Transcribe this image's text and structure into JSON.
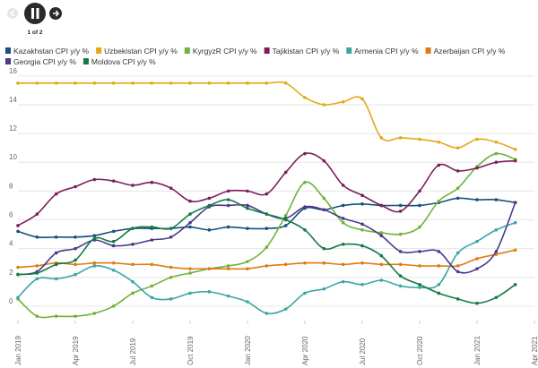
{
  "controls": {
    "pager": "1 of 2"
  },
  "chart_data": {
    "type": "line",
    "x": [
      "2019-01",
      "2019-02",
      "2019-03",
      "2019-04",
      "2019-05",
      "2019-06",
      "2019-07",
      "2019-08",
      "2019-09",
      "2019-10",
      "2019-11",
      "2019-12",
      "2020-01",
      "2020-02",
      "2020-03",
      "2020-04",
      "2020-05",
      "2020-06",
      "2020-07",
      "2020-08",
      "2020-09",
      "2020-10",
      "2020-11",
      "2020-12",
      "2021-01",
      "2021-02",
      "2021-03"
    ],
    "xlim": [
      "2019-01",
      "2021-04"
    ],
    "xticks": [
      {
        "value": "2019-01",
        "label": "Jan 2019"
      },
      {
        "value": "2019-04",
        "label": "Apr 2019"
      },
      {
        "value": "2019-07",
        "label": "Jul 2019"
      },
      {
        "value": "2019-10",
        "label": "Oct 2019"
      },
      {
        "value": "2020-01",
        "label": "Jan 2020"
      },
      {
        "value": "2020-04",
        "label": "Apr 2020"
      },
      {
        "value": "2020-07",
        "label": "Jul 2020"
      },
      {
        "value": "2020-10",
        "label": "Oct 2020"
      },
      {
        "value": "2021-01",
        "label": "Jan 2021"
      },
      {
        "value": "2021-04",
        "label": "Apr 2021"
      }
    ],
    "ylim": [
      -1,
      16.3
    ],
    "yticks": [
      0,
      2,
      4,
      6,
      8,
      10,
      12,
      14,
      16
    ],
    "grid": true,
    "series": [
      {
        "name": "Kazakhstan CPI y/y %",
        "color": "#17507c",
        "values": [
          5.2,
          4.8,
          4.8,
          4.8,
          4.9,
          5.2,
          5.4,
          5.4,
          5.4,
          5.5,
          5.3,
          5.5,
          5.4,
          5.4,
          5.6,
          6.8,
          6.7,
          7.0,
          7.1,
          7.0,
          7.0,
          7.0,
          7.2,
          7.5,
          7.4,
          7.4,
          7.2
        ]
      },
      {
        "name": "Uzbekistan CPI y/y %",
        "color": "#e6a817",
        "values": [
          15.5,
          15.5,
          15.5,
          15.5,
          15.5,
          15.5,
          15.5,
          15.5,
          15.5,
          15.5,
          15.5,
          15.5,
          15.5,
          15.5,
          15.5,
          14.5,
          14.0,
          14.2,
          14.4,
          11.7,
          11.7,
          11.6,
          11.4,
          11.0,
          11.6,
          11.4,
          10.9
        ]
      },
      {
        "name": "KyrgyzR CPI y/y %",
        "color": "#6fb33a",
        "values": [
          0.5,
          -0.7,
          -0.7,
          -0.7,
          -0.5,
          0.0,
          0.9,
          1.4,
          2.0,
          2.3,
          2.6,
          2.8,
          3.1,
          4.1,
          6.3,
          8.6,
          7.5,
          5.8,
          5.3,
          5.1,
          5.0,
          5.5,
          7.3,
          8.2,
          9.7,
          10.6,
          10.2
        ]
      },
      {
        "name": "Tajikistan CPI y/y %",
        "color": "#7b1f5a",
        "values": [
          5.6,
          6.4,
          7.8,
          8.3,
          8.8,
          8.7,
          8.4,
          8.6,
          8.2,
          7.3,
          7.5,
          8.0,
          8.0,
          7.8,
          9.3,
          10.6,
          10.1,
          8.4,
          7.7,
          7.0,
          6.6,
          8.0,
          9.8,
          9.4,
          9.6,
          10.0,
          10.1
        ]
      },
      {
        "name": "Armenia CPI y/y %",
        "color": "#3aa6a7",
        "values": [
          0.6,
          1.9,
          1.9,
          2.2,
          2.8,
          2.5,
          1.7,
          0.6,
          0.5,
          0.9,
          1.0,
          0.7,
          0.3,
          -0.5,
          -0.2,
          0.9,
          1.2,
          1.7,
          1.5,
          1.8,
          1.4,
          1.3,
          1.5,
          3.7,
          4.5,
          5.3,
          5.8
        ]
      },
      {
        "name": "Azerbaijan CPI y/y %",
        "color": "#e07b14",
        "values": [
          2.7,
          2.8,
          3.0,
          2.9,
          3.0,
          3.0,
          2.9,
          2.9,
          2.7,
          2.6,
          2.6,
          2.6,
          2.6,
          2.8,
          2.9,
          3.0,
          3.0,
          2.9,
          3.0,
          2.9,
          2.9,
          2.8,
          2.8,
          2.8,
          3.3,
          3.6,
          3.9
        ]
      },
      {
        "name": "Georgia CPI y/y %",
        "color": "#4b3a8b",
        "values": [
          2.2,
          2.4,
          3.7,
          4.0,
          4.6,
          4.2,
          4.3,
          4.6,
          4.8,
          5.8,
          6.9,
          7.0,
          7.0,
          6.4,
          6.1,
          6.9,
          6.7,
          6.1,
          5.7,
          4.9,
          3.8,
          3.8,
          3.8,
          2.4,
          2.6,
          3.8,
          7.2
        ]
      },
      {
        "name": "Moldova CPI y/y %",
        "color": "#137a46",
        "values": [
          2.2,
          2.3,
          2.9,
          3.2,
          4.7,
          4.5,
          5.4,
          5.5,
          5.4,
          6.4,
          7.0,
          7.4,
          6.8,
          6.4,
          6.0,
          5.3,
          4.0,
          4.3,
          4.2,
          3.5,
          2.1,
          1.5,
          0.9,
          0.5,
          0.2,
          0.6,
          1.5
        ]
      }
    ]
  }
}
